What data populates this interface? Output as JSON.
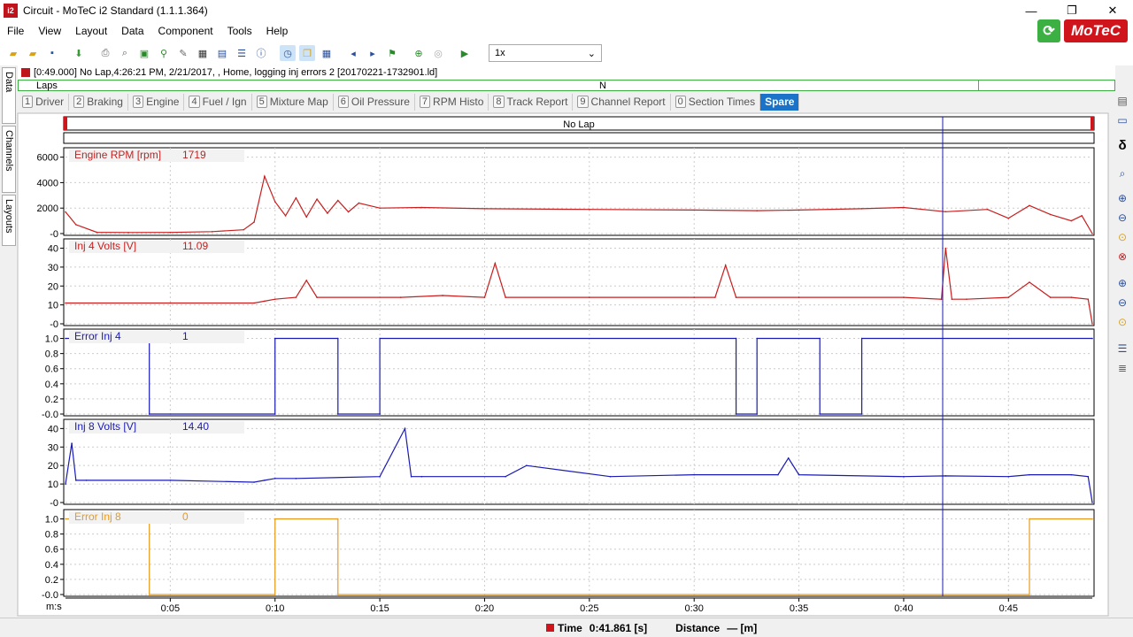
{
  "window": {
    "title": "Circuit - MoTeC i2 Standard (1.1.1.364)",
    "app_icon": "i2",
    "minimize": "—",
    "restore": "❐",
    "close": "✕"
  },
  "menu": [
    "File",
    "View",
    "Layout",
    "Data",
    "Component",
    "Tools",
    "Help"
  ],
  "toolbar": {
    "speed_value": "1x",
    "icons": [
      "open-folder-icon",
      "folder-icon",
      "save-icon",
      "download-icon",
      "print-icon",
      "print-preview-icon",
      "chart-icon",
      "filter-icon",
      "edit-icon",
      "film-icon",
      "table-icon",
      "list-icon",
      "info-icon",
      "clock-icon",
      "windows-icon",
      "grid-icon",
      "back-icon",
      "forward-icon",
      "marker-icon",
      "zoom-add-icon",
      "zoom-icon",
      "play-icon"
    ]
  },
  "brand": {
    "logo_text": "MoTeC",
    "refresh_icon": "⟳"
  },
  "side_tabs": {
    "data": "Data",
    "channels": "Channels",
    "layouts": "Layouts"
  },
  "file_info": "[0:49.000] No Lap,4:26:21 PM, 2/21/2017, , Home, logging inj errors 2 [20170221-1732901.ld]",
  "laps": {
    "label": "Laps",
    "marker": "N"
  },
  "tabs": [
    {
      "num": "1",
      "label": "Driver"
    },
    {
      "num": "2",
      "label": "Braking"
    },
    {
      "num": "3",
      "label": "Engine"
    },
    {
      "num": "4",
      "label": "Fuel / Ign"
    },
    {
      "num": "5",
      "label": "Mixture Map"
    },
    {
      "num": "6",
      "label": "Oil Pressure"
    },
    {
      "num": "7",
      "label": "RPM Histo"
    },
    {
      "num": "8",
      "label": "Track Report"
    },
    {
      "num": "9",
      "label": "Channel Report"
    },
    {
      "num": "0",
      "label": "Section Times"
    },
    {
      "num": "",
      "label": "Spare",
      "active": true
    }
  ],
  "graph": {
    "lap_label": "No Lap",
    "cursor_time": 41.861,
    "x_label": "m:s",
    "x_ticks": [
      "0:05",
      "0:10",
      "0:15",
      "0:20",
      "0:25",
      "0:30",
      "0:35",
      "0:40",
      "0:45"
    ],
    "x_tick_values": [
      5,
      10,
      15,
      20,
      25,
      30,
      35,
      40,
      45
    ],
    "x_range": [
      0,
      49
    ]
  },
  "chart_data": [
    {
      "type": "line",
      "name": "Engine RPM [rpm]",
      "cursor_value": "1719",
      "color": "#c81e1e",
      "y_ticks": [
        "6000",
        "4000",
        "2000",
        "-0"
      ],
      "y_tick_values": [
        6000,
        4000,
        2000,
        0
      ],
      "ylim": [
        0,
        6600
      ],
      "x": [
        0,
        0.5,
        1.5,
        3,
        5,
        7,
        8.5,
        9,
        9.5,
        10,
        10.5,
        11,
        11.5,
        12,
        12.5,
        13,
        13.5,
        14,
        15,
        17,
        20,
        25,
        30,
        33,
        35,
        38,
        40,
        42,
        44,
        45,
        46,
        47,
        48,
        48.5,
        49
      ],
      "y": [
        1700,
        700,
        100,
        80,
        90,
        150,
        300,
        900,
        4500,
        2500,
        1400,
        2800,
        1300,
        2700,
        1600,
        2600,
        1700,
        2400,
        2000,
        2050,
        1950,
        1900,
        1850,
        1800,
        1850,
        1950,
        2050,
        1719,
        1900,
        1200,
        2200,
        1500,
        1000,
        1400,
        0
      ]
    },
    {
      "type": "line",
      "name": "Inj 4 Volts [V]",
      "cursor_value": "11.09",
      "color": "#c81e1e",
      "y_ticks": [
        "40",
        "30",
        "20",
        "10",
        "-0"
      ],
      "y_tick_values": [
        40,
        30,
        20,
        10,
        0
      ],
      "ylim": [
        0,
        44
      ],
      "x": [
        0,
        5,
        9,
        9.5,
        10,
        11,
        11.5,
        12,
        16,
        18,
        20,
        20.5,
        21,
        25,
        30,
        31,
        31.5,
        32,
        35,
        40,
        41.8,
        42,
        42.3,
        43,
        45,
        46,
        47,
        48,
        48.8,
        49
      ],
      "y": [
        11,
        11,
        11,
        12,
        13,
        14,
        23,
        14,
        14,
        15,
        14,
        32,
        14,
        14,
        14,
        14,
        31,
        14,
        14,
        14,
        13,
        40,
        13,
        13,
        14,
        22,
        14,
        14,
        13,
        0
      ]
    },
    {
      "type": "line",
      "name": "Error Inj 4",
      "cursor_value": "1",
      "color": "#1a1ab4",
      "y_ticks": [
        "1.0",
        "0.8",
        "0.6",
        "0.4",
        "0.2",
        "-0.0"
      ],
      "y_tick_values": [
        1,
        0.8,
        0.6,
        0.4,
        0.2,
        0
      ],
      "ylim": [
        0,
        1.1
      ],
      "x": [
        0,
        4,
        4,
        10,
        10,
        13,
        13,
        15,
        15,
        32,
        32,
        33,
        33,
        36,
        36,
        38,
        38,
        49
      ],
      "y": [
        1,
        1,
        0,
        0,
        1,
        1,
        0,
        0,
        1,
        1,
        0,
        0,
        1,
        1,
        0,
        0,
        1,
        1
      ]
    },
    {
      "type": "line",
      "name": "Inj 8 Volts [V]",
      "cursor_value": "14.40",
      "color": "#1a1ab4",
      "y_ticks": [
        "40",
        "30",
        "20",
        "10",
        "-0"
      ],
      "y_tick_values": [
        40,
        30,
        20,
        10,
        0
      ],
      "ylim": [
        0,
        44
      ],
      "x": [
        0,
        0.3,
        0.5,
        1,
        5,
        9,
        9.5,
        10,
        11,
        15,
        16.2,
        16.5,
        17,
        21,
        22,
        26,
        30,
        34,
        34.5,
        35,
        40,
        42,
        45,
        46,
        48,
        48.8,
        49
      ],
      "y": [
        10,
        32,
        12,
        12,
        12,
        11,
        12,
        13,
        13,
        14,
        40,
        14,
        14,
        14,
        20,
        14,
        15,
        15,
        24,
        15,
        14,
        14.4,
        14,
        15,
        15,
        14,
        0
      ]
    },
    {
      "type": "line",
      "name": "Error Inj 8",
      "cursor_value": "0",
      "color": "#e89a1c",
      "y_ticks": [
        "1.0",
        "0.8",
        "0.6",
        "0.4",
        "0.2",
        "-0.0"
      ],
      "y_tick_values": [
        1,
        0.8,
        0.6,
        0.4,
        0.2,
        0
      ],
      "ylim": [
        0,
        1.1
      ],
      "x": [
        0,
        4,
        4,
        10,
        10,
        13,
        13,
        46,
        46,
        49
      ],
      "y": [
        1,
        1,
        0,
        0,
        1,
        1,
        0,
        0,
        1,
        1
      ]
    }
  ],
  "status": {
    "time_label": "Time",
    "time_value": "0:41.861 [s]",
    "distance_label": "Distance",
    "distance_value": "— [m]"
  }
}
